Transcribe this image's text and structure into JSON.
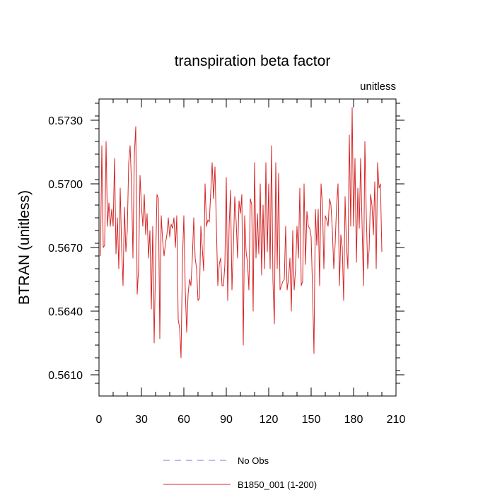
{
  "chart_data": {
    "type": "line",
    "title": "transpiration beta factor",
    "units_label": "unitless",
    "ylabel": "BTRAN  (unitless)",
    "xlabel": "",
    "xlim": [
      0,
      210
    ],
    "ylim": [
      0.56,
      0.574
    ],
    "x_ticks": [
      0,
      30,
      60,
      90,
      120,
      150,
      180,
      210
    ],
    "x_tick_labels": [
      "0",
      "30",
      "60",
      "90",
      "120",
      "150",
      "180",
      "210"
    ],
    "y_ticks": [
      0.561,
      0.564,
      0.567,
      0.57,
      0.573
    ],
    "y_tick_labels": [
      "0.5610",
      "0.5640",
      "0.5670",
      "0.5700",
      "0.5730"
    ],
    "legend": [
      {
        "label": "No Obs",
        "color": "#7b7bdc",
        "style": "dashed"
      },
      {
        "label": "B1850_001 (1-200)",
        "color": "#d62728",
        "style": "solid"
      }
    ],
    "series": [
      {
        "name": "B1850_001 (1-200)",
        "color": "#d62728",
        "x_start": 1,
        "values": [
          0.5666,
          0.5718,
          0.567,
          0.5671,
          0.572,
          0.568,
          0.5691,
          0.568,
          0.5688,
          0.568,
          0.5712,
          0.5667,
          0.5684,
          0.566,
          0.5698,
          0.567,
          0.5652,
          0.5689,
          0.5668,
          0.5678,
          0.571,
          0.5718,
          0.57,
          0.5665,
          0.5714,
          0.5727,
          0.5648,
          0.566,
          0.5704,
          0.569,
          0.568,
          0.5695,
          0.5676,
          0.5686,
          0.5665,
          0.5678,
          0.5641,
          0.568,
          0.5625,
          0.5663,
          0.5695,
          0.5693,
          0.5627,
          0.5685,
          0.5673,
          0.5666,
          0.5672,
          0.5676,
          0.5684,
          0.5675,
          0.5681,
          0.5679,
          0.5684,
          0.567,
          0.5685,
          0.5636,
          0.5632,
          0.5618,
          0.5664,
          0.5685,
          0.565,
          0.563,
          0.5648,
          0.5655,
          0.5652,
          0.5665,
          0.5684,
          0.5665,
          0.566,
          0.5645,
          0.5646,
          0.568,
          0.567,
          0.5659,
          0.57,
          0.568,
          0.5683,
          0.5682,
          0.5696,
          0.571,
          0.5693,
          0.5708,
          0.568,
          0.5652,
          0.5662,
          0.5665,
          0.5652,
          0.5652,
          0.5662,
          0.5703,
          0.5645,
          0.568,
          0.5697,
          0.565,
          0.567,
          0.5694,
          0.5682,
          0.5665,
          0.5692,
          0.5686,
          0.5695,
          0.5624,
          0.5685,
          0.5668,
          0.5663,
          0.565,
          0.5693,
          0.569,
          0.564,
          0.571,
          0.5665,
          0.5686,
          0.5667,
          0.57,
          0.5657,
          0.569,
          0.566,
          0.571,
          0.5668,
          0.57,
          0.566,
          0.5718,
          0.5654,
          0.5634,
          0.571,
          0.566,
          0.5705,
          0.565,
          0.5652,
          0.5654,
          0.5655,
          0.568,
          0.565,
          0.5655,
          0.5665,
          0.564,
          0.5678,
          0.565,
          0.566,
          0.568,
          0.5665,
          0.5698,
          0.5652,
          0.5654,
          0.57,
          0.5662,
          0.5687,
          0.568,
          0.5679,
          0.5675,
          0.565,
          0.562,
          0.5688,
          0.5671,
          0.5688,
          0.5652,
          0.57,
          0.569,
          0.566,
          0.5685,
          0.5683,
          0.568,
          0.5693,
          0.569,
          0.5678,
          0.566,
          0.5672,
          0.569,
          0.57,
          0.5652,
          0.5676,
          0.567,
          0.5645,
          0.5694,
          0.567,
          0.566,
          0.5723,
          0.568,
          0.5736,
          0.568,
          0.5712,
          0.5663,
          0.5698,
          0.5679,
          0.5712,
          0.5681,
          0.5652,
          0.572,
          0.5685,
          0.566,
          0.5669,
          0.5695,
          0.569,
          0.5676,
          0.5701,
          0.566,
          0.571,
          0.5698,
          0.57,
          0.5668
        ]
      }
    ]
  }
}
